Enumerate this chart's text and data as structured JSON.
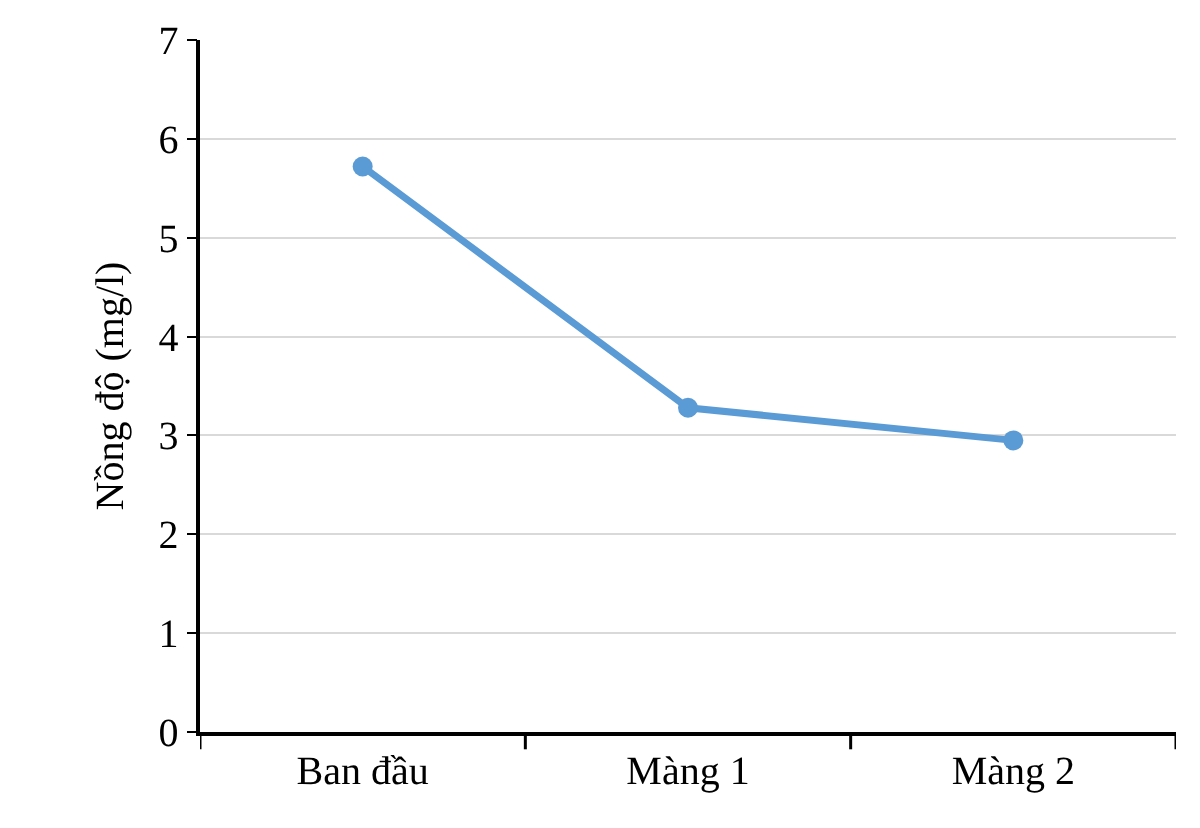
{
  "chart_data": {
    "type": "line",
    "ylabel": "Nồng độ (mg/l)",
    "categories": [
      "Ban đầu",
      "Màng 1",
      "Màng 2"
    ],
    "series": [
      {
        "color": "#5b9bd5",
        "values": [
          5.72,
          3.28,
          2.95
        ]
      }
    ],
    "ylim": [
      0,
      7
    ],
    "yticks": [
      0,
      1,
      2,
      3,
      4,
      5,
      6,
      7
    ],
    "grid": "y",
    "legend": false,
    "marker": "circle",
    "line_style": "solid"
  }
}
